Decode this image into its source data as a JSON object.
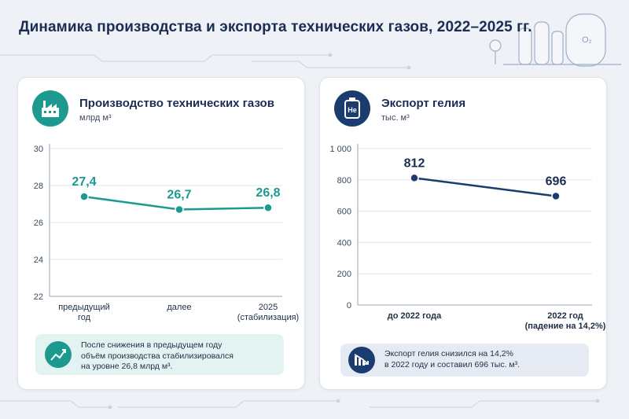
{
  "title": "Динамика производства и экспорта технических газов, 2022–2025 гг.",
  "colors": {
    "teal": "#1c9a8f",
    "navy": "#1b3c6e"
  },
  "left": {
    "title": "Производство технических газов",
    "unit": "млрд м³",
    "icon": "factory-icon",
    "note_icon": "trend-up-icon",
    "note_lines": [
      "После снижения в предыдущем году",
      "объём производства стабилизировался",
      "на уровне 26,8 млрд м³."
    ]
  },
  "right": {
    "title": "Экспорт гелия",
    "unit": "тыс. м³",
    "icon": "helium-cylinder-icon",
    "note_icon": "trend-down-icon",
    "note_lines": [
      "Экспорт гелия снизился на 14,2%",
      "в 2022 году и составил 696 тыс. м³."
    ]
  },
  "chart_data": [
    {
      "type": "line",
      "title": "Производство технических газов",
      "ylabel": "млрд м³",
      "categories": [
        [
          "предыдущий",
          "год"
        ],
        [
          "далее"
        ],
        [
          "2025",
          "(стабилизация)"
        ]
      ],
      "values": [
        27.4,
        26.7,
        26.8
      ],
      "value_labels": [
        "27,4",
        "26,7",
        "26,8"
      ],
      "ylim": [
        22,
        30
      ],
      "yticks": [
        22,
        24,
        26,
        28,
        30
      ],
      "ytick_labels": [
        "22",
        "24",
        "26",
        "28",
        "30"
      ],
      "grid": true,
      "color": "#1c9a8f"
    },
    {
      "type": "line",
      "title": "Экспорт гелия",
      "ylabel": "тыс. м³",
      "categories": [
        [
          "до 2022 года"
        ],
        [
          "2022 год",
          "(падение на 14,2%)"
        ]
      ],
      "values": [
        812,
        696
      ],
      "value_labels": [
        "812",
        "696"
      ],
      "ylim": [
        0,
        1000
      ],
      "yticks": [
        0,
        200,
        400,
        600,
        800,
        1000
      ],
      "ytick_labels": [
        "0",
        "200",
        "400",
        "600",
        "800",
        "1 000"
      ],
      "grid": true,
      "color": "#1b3c6e"
    }
  ]
}
